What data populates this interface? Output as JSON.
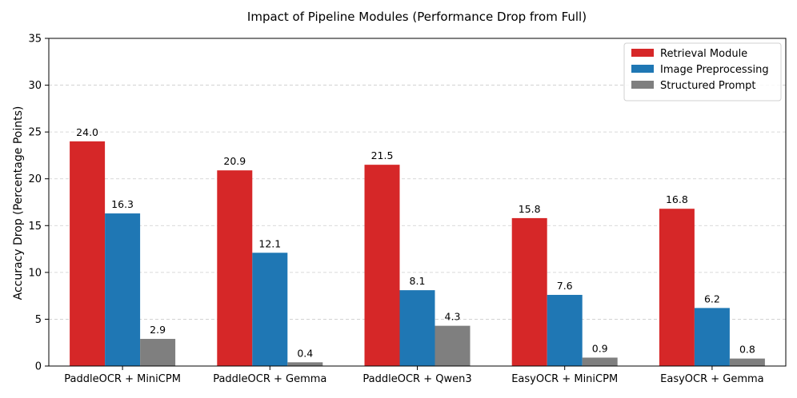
{
  "chart_data": {
    "type": "bar",
    "title": "Impact of Pipeline Modules (Performance Drop from Full)",
    "xlabel": "",
    "ylabel": "Accuracy Drop (Percentage Points)",
    "ylim": [
      0,
      35
    ],
    "yticks": [
      "0",
      "5",
      "10",
      "15",
      "20",
      "25",
      "30",
      "35"
    ],
    "grid": "horizontal dashed",
    "legend_position": "top-right",
    "categories": [
      "PaddleOCR + MiniCPM",
      "PaddleOCR + Gemma",
      "PaddleOCR + Qwen3",
      "EasyOCR + MiniCPM",
      "EasyOCR + Gemma"
    ],
    "series": [
      {
        "name": "Retrieval Module",
        "color": "#d62728",
        "values": [
          24.0,
          20.9,
          21.5,
          15.8,
          16.8
        ],
        "labels": [
          "24.0",
          "20.9",
          "21.5",
          "15.8",
          "16.8"
        ]
      },
      {
        "name": "Image Preprocessing",
        "color": "#1f77b4",
        "values": [
          16.3,
          12.1,
          8.1,
          7.6,
          6.2
        ],
        "labels": [
          "16.3",
          "12.1",
          "8.1",
          "7.6",
          "6.2"
        ]
      },
      {
        "name": "Structured Prompt",
        "color": "#7f7f7f",
        "values": [
          2.9,
          0.4,
          4.3,
          0.9,
          0.8
        ],
        "labels": [
          "2.9",
          "0.4",
          "4.3",
          "0.9",
          "0.8"
        ]
      }
    ]
  }
}
